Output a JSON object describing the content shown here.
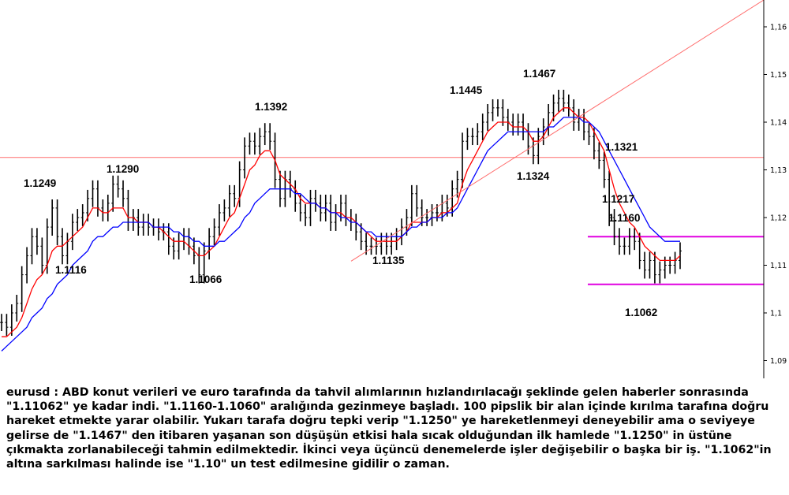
{
  "chart_data": {
    "type": "line",
    "symbol": "eurusd",
    "ylim": [
      1.085,
      1.165
    ],
    "y_ticks": [
      "1,16",
      "1,15",
      "1,14",
      "1,13",
      "1,12",
      "1,11",
      "1,1",
      "1,09"
    ],
    "y_tick_values": [
      1.16,
      1.15,
      1.14,
      1.13,
      1.12,
      1.11,
      1.1,
      1.09
    ],
    "price_labels": [
      {
        "text": "1.1249",
        "price": 1.1249
      },
      {
        "text": "1.1290",
        "price": 1.129
      },
      {
        "text": "1.1116",
        "price": 1.1116
      },
      {
        "text": "1.1392",
        "price": 1.1392
      },
      {
        "text": "1.1066",
        "price": 1.1066
      },
      {
        "text": "1.1445",
        "price": 1.1445
      },
      {
        "text": "1.1467",
        "price": 1.1467
      },
      {
        "text": "1.1135",
        "price": 1.1135
      },
      {
        "text": "1.1324",
        "price": 1.1324
      },
      {
        "text": "1.1321",
        "price": 1.1321
      },
      {
        "text": "1.1217",
        "price": 1.1217
      },
      {
        "text": "1.1160",
        "price": 1.116
      },
      {
        "text": "1.1062",
        "price": 1.1062
      }
    ],
    "horizontal_lines": [
      {
        "price": 1.1326,
        "color": "#ff6b6b"
      },
      {
        "price": 1.116,
        "color": "#e000e0"
      },
      {
        "price": 1.106,
        "color": "#e000e0"
      }
    ],
    "series": [
      {
        "color": "#000000",
        "values": [
          1.098,
          1.097,
          1.1,
          1.102,
          1.108,
          1.112,
          1.116,
          1.114,
          1.11,
          1.118,
          1.122,
          1.116,
          1.112,
          1.115,
          1.119,
          1.12,
          1.121,
          1.124,
          1.126,
          1.122,
          1.121,
          1.123,
          1.127,
          1.126,
          1.124,
          1.119,
          1.12,
          1.118,
          1.119,
          1.118,
          1.118,
          1.117,
          1.117,
          1.114,
          1.113,
          1.115,
          1.116,
          1.114,
          1.112,
          1.108,
          1.113,
          1.116,
          1.118,
          1.121,
          1.122,
          1.125,
          1.124,
          1.13,
          1.135,
          1.136,
          1.135,
          1.137,
          1.138,
          1.136,
          1.128,
          1.124,
          1.128,
          1.126,
          1.123,
          1.121,
          1.12,
          1.124,
          1.123,
          1.121,
          1.123,
          1.119,
          1.121,
          1.123,
          1.12,
          1.119,
          1.117,
          1.115,
          1.114,
          1.114,
          1.114,
          1.115,
          1.114,
          1.115,
          1.116,
          1.118,
          1.12,
          1.125,
          1.122,
          1.12,
          1.12,
          1.121,
          1.121,
          1.123,
          1.122,
          1.126,
          1.128,
          1.136,
          1.137,
          1.137,
          1.138,
          1.14,
          1.142,
          1.143,
          1.143,
          1.141,
          1.14,
          1.139,
          1.14,
          1.138,
          1.135,
          1.133,
          1.137,
          1.139,
          1.142,
          1.144,
          1.145,
          1.144,
          1.143,
          1.14,
          1.141,
          1.138,
          1.137,
          1.134,
          1.132,
          1.128,
          1.12,
          1.116,
          1.114,
          1.114,
          1.116,
          1.115,
          1.111,
          1.109,
          1.111,
          1.108,
          1.109,
          1.11,
          1.11,
          1.111,
          1.113
        ]
      },
      {
        "color": "#ff0000",
        "values": [
          1.095,
          1.095,
          1.096,
          1.097,
          1.099,
          1.102,
          1.105,
          1.107,
          1.108,
          1.11,
          1.113,
          1.114,
          1.114,
          1.115,
          1.116,
          1.117,
          1.118,
          1.12,
          1.122,
          1.122,
          1.121,
          1.121,
          1.122,
          1.122,
          1.122,
          1.12,
          1.12,
          1.119,
          1.119,
          1.119,
          1.118,
          1.118,
          1.117,
          1.116,
          1.115,
          1.115,
          1.115,
          1.114,
          1.113,
          1.112,
          1.112,
          1.113,
          1.114,
          1.116,
          1.118,
          1.12,
          1.121,
          1.124,
          1.127,
          1.13,
          1.131,
          1.133,
          1.134,
          1.134,
          1.132,
          1.129,
          1.128,
          1.127,
          1.126,
          1.124,
          1.123,
          1.123,
          1.123,
          1.122,
          1.122,
          1.121,
          1.121,
          1.121,
          1.12,
          1.12,
          1.119,
          1.118,
          1.117,
          1.116,
          1.115,
          1.115,
          1.115,
          1.115,
          1.115,
          1.116,
          1.117,
          1.119,
          1.119,
          1.119,
          1.119,
          1.12,
          1.12,
          1.121,
          1.121,
          1.122,
          1.123,
          1.127,
          1.13,
          1.132,
          1.134,
          1.136,
          1.138,
          1.139,
          1.14,
          1.14,
          1.14,
          1.139,
          1.139,
          1.139,
          1.138,
          1.136,
          1.136,
          1.137,
          1.139,
          1.141,
          1.142,
          1.143,
          1.143,
          1.142,
          1.141,
          1.141,
          1.14,
          1.138,
          1.136,
          1.134,
          1.13,
          1.126,
          1.123,
          1.121,
          1.119,
          1.118,
          1.116,
          1.114,
          1.113,
          1.112,
          1.111,
          1.111,
          1.111,
          1.111,
          1.112
        ]
      },
      {
        "color": "#0000ff",
        "values": [
          1.092,
          1.093,
          1.094,
          1.095,
          1.096,
          1.097,
          1.099,
          1.1,
          1.101,
          1.103,
          1.104,
          1.106,
          1.107,
          1.108,
          1.11,
          1.111,
          1.112,
          1.113,
          1.115,
          1.116,
          1.116,
          1.117,
          1.118,
          1.118,
          1.119,
          1.119,
          1.119,
          1.119,
          1.119,
          1.119,
          1.118,
          1.118,
          1.118,
          1.118,
          1.117,
          1.117,
          1.116,
          1.116,
          1.115,
          1.115,
          1.114,
          1.114,
          1.114,
          1.115,
          1.115,
          1.116,
          1.117,
          1.118,
          1.12,
          1.121,
          1.123,
          1.124,
          1.125,
          1.126,
          1.126,
          1.126,
          1.126,
          1.126,
          1.125,
          1.125,
          1.124,
          1.123,
          1.123,
          1.122,
          1.122,
          1.121,
          1.121,
          1.12,
          1.12,
          1.119,
          1.119,
          1.118,
          1.117,
          1.117,
          1.116,
          1.116,
          1.116,
          1.116,
          1.116,
          1.116,
          1.117,
          1.118,
          1.118,
          1.119,
          1.119,
          1.12,
          1.12,
          1.12,
          1.121,
          1.121,
          1.122,
          1.124,
          1.126,
          1.128,
          1.13,
          1.132,
          1.134,
          1.135,
          1.136,
          1.137,
          1.138,
          1.138,
          1.138,
          1.138,
          1.138,
          1.138,
          1.138,
          1.138,
          1.139,
          1.139,
          1.14,
          1.141,
          1.141,
          1.141,
          1.141,
          1.14,
          1.14,
          1.139,
          1.138,
          1.136,
          1.134,
          1.132,
          1.13,
          1.128,
          1.126,
          1.124,
          1.122,
          1.12,
          1.118,
          1.117,
          1.116,
          1.115,
          1.115,
          1.115,
          1.115
        ]
      }
    ],
    "trendline": {
      "color": "#ff6b6b",
      "start_price": 1.1135,
      "end_price": 1.165
    }
  },
  "caption": "eurusd : ABD konut verileri ve euro tarafında da tahvil alımlarının hızlandırılacağı şeklinde gelen haberler sonrasında \"1.11062\" ye kadar indi. \"1.1160-1.1060\" aralığında gezinmeye başladı. 100 pipslik bir alan içinde kırılma tarafına doğru hareket etmekte yarar olabilir. Yukarı tarafa doğru tepki verip \"1.1250\" ye hareketlenmeyi deneyebilir ama o seviyeye gelirse de \"1.1467\" den itibaren yaşanan son düşüşün etkisi hala sıcak olduğundan ilk hamlede \"1.1250\" in üstüne çıkmakta zorlanabileceği tahmin edilmektedir. İkinci veya üçüncü denemelerde işler değişebilir o başka bir iş. \"1.1062\"in altına sarkılması halinde ise \"1.10\" un test edilmesine gidilir o zaman."
}
